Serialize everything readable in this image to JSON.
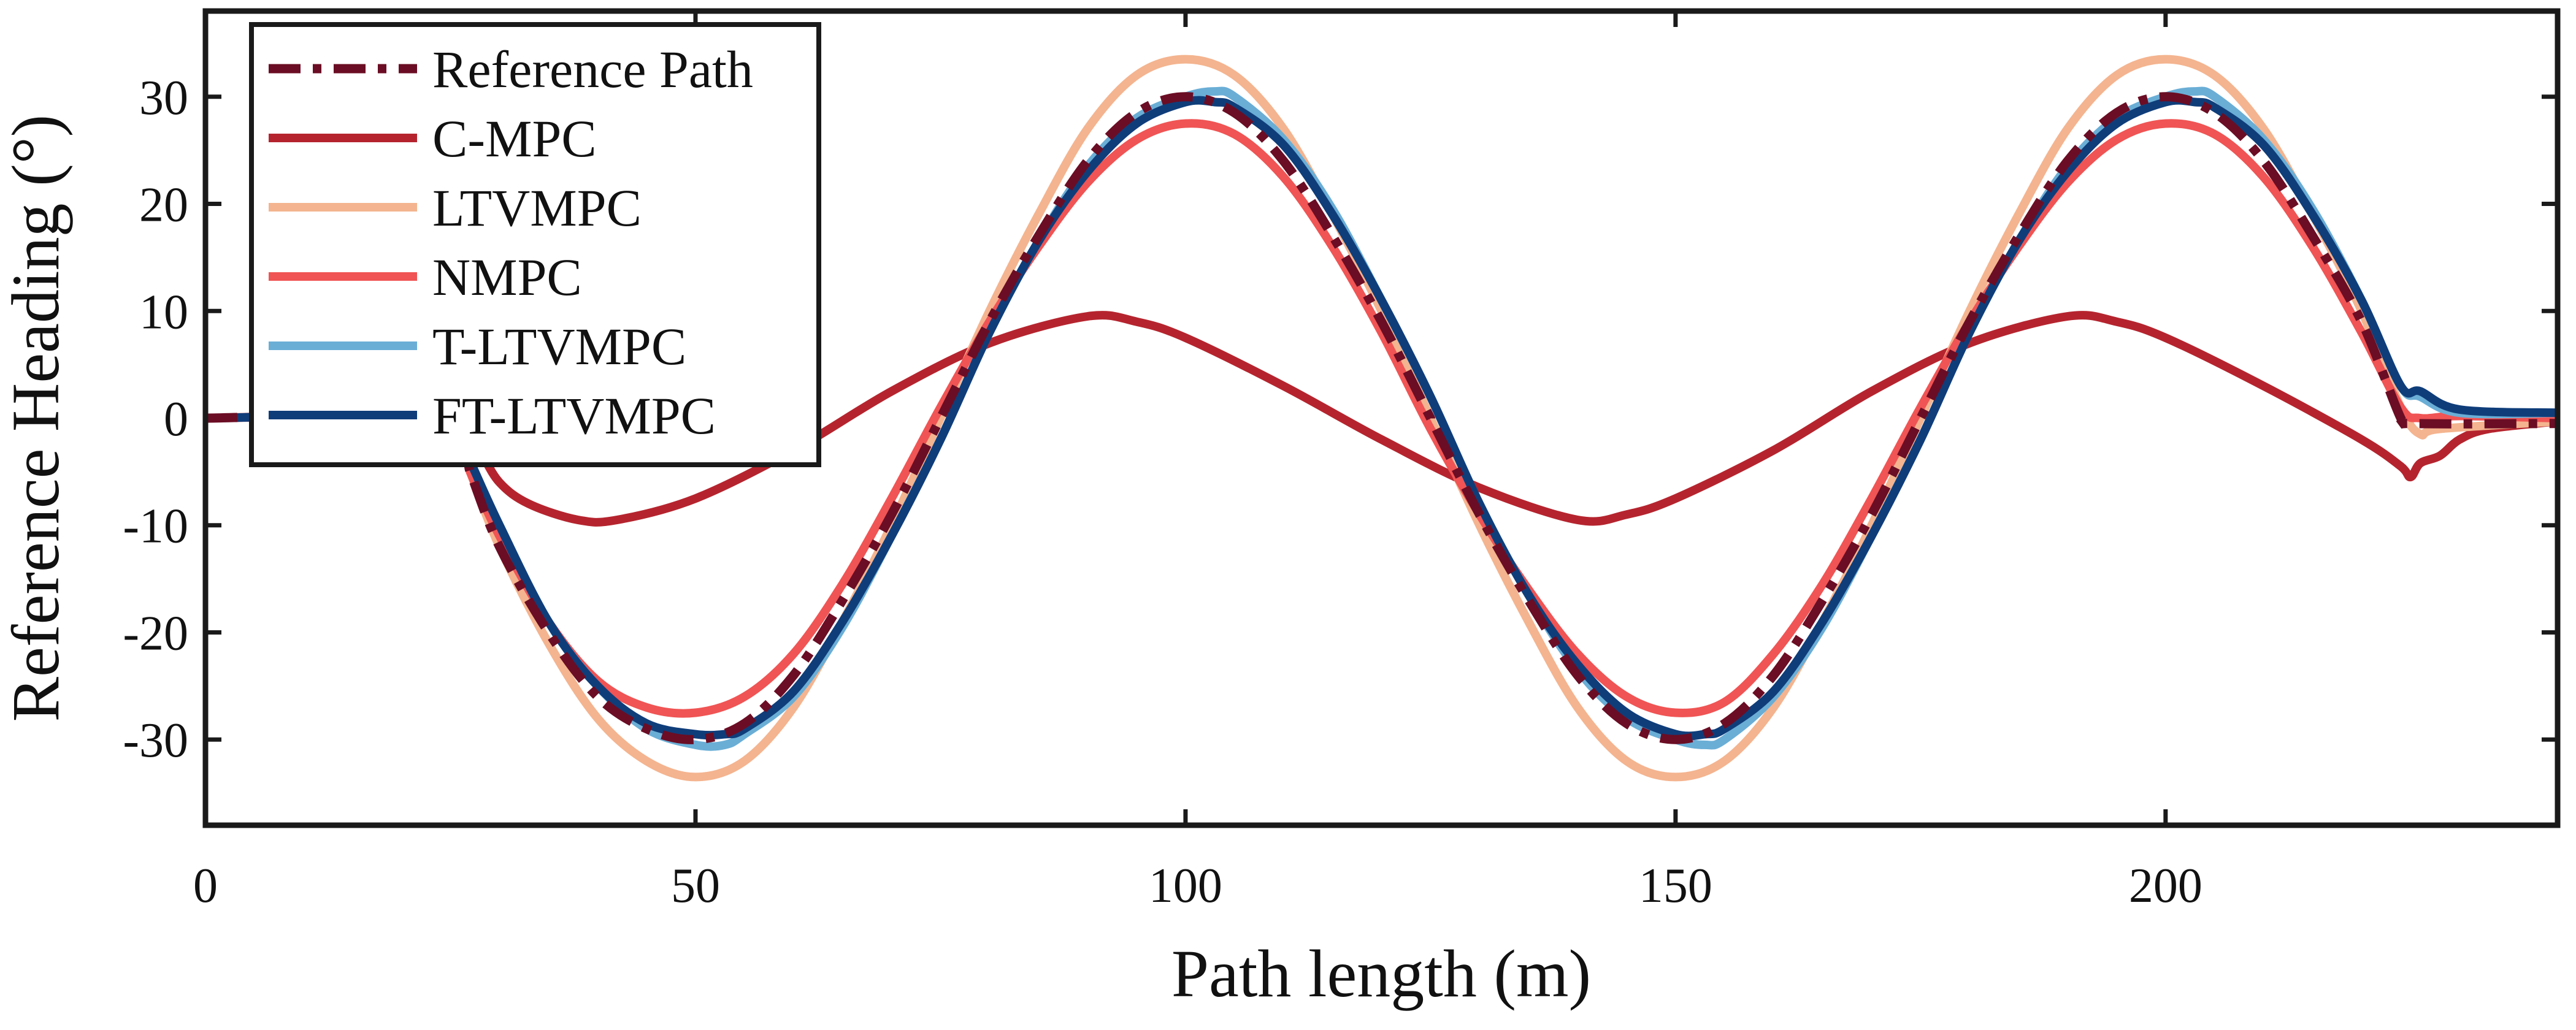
{
  "chart_data": {
    "type": "line",
    "title": "",
    "xlabel": "Path length (m)",
    "ylabel": "Reference Heading (°)",
    "xlim": [
      0,
      240
    ],
    "ylim": [
      -38,
      38
    ],
    "x_ticks": [
      0,
      50,
      100,
      150,
      200
    ],
    "y_ticks": [
      30,
      20,
      10,
      0,
      -10,
      -20,
      -30
    ],
    "legend_position": "top-left",
    "series": [
      {
        "name": "Reference Path",
        "color": "#6b0d24",
        "style": "dashdot",
        "points": [
          [
            0,
            0
          ],
          [
            25,
            0
          ],
          [
            27,
            -5
          ],
          [
            30,
            -12
          ],
          [
            35,
            -20
          ],
          [
            40,
            -26
          ],
          [
            45,
            -29
          ],
          [
            50,
            -30
          ],
          [
            55,
            -28.5
          ],
          [
            60,
            -24
          ],
          [
            65,
            -17
          ],
          [
            70,
            -9
          ],
          [
            75,
            0
          ],
          [
            80,
            9
          ],
          [
            85,
            17
          ],
          [
            90,
            24
          ],
          [
            95,
            28.5
          ],
          [
            100,
            30
          ],
          [
            105,
            28.5
          ],
          [
            110,
            24
          ],
          [
            115,
            17
          ],
          [
            120,
            9
          ],
          [
            125,
            0
          ],
          [
            130,
            -9
          ],
          [
            135,
            -17
          ],
          [
            140,
            -24
          ],
          [
            145,
            -28.5
          ],
          [
            150,
            -30
          ],
          [
            155,
            -28.5
          ],
          [
            160,
            -24
          ],
          [
            165,
            -17
          ],
          [
            170,
            -9
          ],
          [
            175,
            0
          ],
          [
            180,
            9
          ],
          [
            185,
            17
          ],
          [
            190,
            24
          ],
          [
            195,
            28.5
          ],
          [
            200,
            30
          ],
          [
            205,
            28.5
          ],
          [
            210,
            24
          ],
          [
            215,
            17
          ],
          [
            220,
            9
          ],
          [
            224,
            0
          ],
          [
            225,
            -0.5
          ],
          [
            240,
            -0.5
          ]
        ]
      },
      {
        "name": "C-MPC",
        "color": "#b5242e",
        "style": "solid",
        "points": [
          [
            0,
            0
          ],
          [
            26,
            0
          ],
          [
            28,
            -3
          ],
          [
            30,
            -6
          ],
          [
            33,
            -8
          ],
          [
            38,
            -9.5
          ],
          [
            42,
            -9.5
          ],
          [
            50,
            -7.5
          ],
          [
            60,
            -3
          ],
          [
            70,
            2.5
          ],
          [
            80,
            7
          ],
          [
            90,
            9.5
          ],
          [
            95,
            9
          ],
          [
            100,
            7.5
          ],
          [
            110,
            3
          ],
          [
            120,
            -2
          ],
          [
            130,
            -6.5
          ],
          [
            140,
            -9.5
          ],
          [
            145,
            -9
          ],
          [
            150,
            -7.5
          ],
          [
            160,
            -3
          ],
          [
            170,
            2.5
          ],
          [
            180,
            7
          ],
          [
            190,
            9.5
          ],
          [
            195,
            9
          ],
          [
            200,
            7.5
          ],
          [
            210,
            3
          ],
          [
            220,
            -2
          ],
          [
            224,
            -4.5
          ],
          [
            225,
            -5.5
          ],
          [
            226,
            -4.2
          ],
          [
            228,
            -3.5
          ],
          [
            230,
            -2
          ],
          [
            233,
            -1
          ],
          [
            240,
            -0.3
          ]
        ]
      },
      {
        "name": "LTVMPC",
        "color": "#f4b48f",
        "style": "solid",
        "points": [
          [
            0,
            0
          ],
          [
            25,
            0
          ],
          [
            27,
            -5
          ],
          [
            30,
            -12
          ],
          [
            35,
            -21
          ],
          [
            40,
            -28
          ],
          [
            45,
            -32
          ],
          [
            50,
            -33.5
          ],
          [
            55,
            -32
          ],
          [
            60,
            -27
          ],
          [
            65,
            -19
          ],
          [
            70,
            -10
          ],
          [
            75,
            0
          ],
          [
            80,
            10
          ],
          [
            85,
            19
          ],
          [
            90,
            27
          ],
          [
            95,
            32
          ],
          [
            100,
            33.5
          ],
          [
            105,
            32
          ],
          [
            110,
            27
          ],
          [
            115,
            19
          ],
          [
            120,
            10
          ],
          [
            125,
            0
          ],
          [
            130,
            -10
          ],
          [
            135,
            -19
          ],
          [
            140,
            -27
          ],
          [
            145,
            -32
          ],
          [
            150,
            -33.5
          ],
          [
            155,
            -32
          ],
          [
            160,
            -27
          ],
          [
            165,
            -19
          ],
          [
            170,
            -10
          ],
          [
            175,
            0
          ],
          [
            180,
            10
          ],
          [
            185,
            19
          ],
          [
            190,
            27
          ],
          [
            195,
            32
          ],
          [
            200,
            33.5
          ],
          [
            205,
            32
          ],
          [
            210,
            27
          ],
          [
            215,
            19
          ],
          [
            220,
            10
          ],
          [
            224,
            1
          ],
          [
            226,
            -1.5
          ],
          [
            228,
            -1
          ],
          [
            240,
            -0.3
          ]
        ]
      },
      {
        "name": "NMPC",
        "color": "#f05454",
        "style": "solid",
        "points": [
          [
            0,
            0
          ],
          [
            25,
            0
          ],
          [
            27,
            -5
          ],
          [
            30,
            -11
          ],
          [
            35,
            -19
          ],
          [
            40,
            -24.5
          ],
          [
            45,
            -27
          ],
          [
            50,
            -27.5
          ],
          [
            55,
            -26
          ],
          [
            60,
            -22
          ],
          [
            65,
            -15.5
          ],
          [
            70,
            -7.5
          ],
          [
            75,
            1
          ],
          [
            80,
            9
          ],
          [
            85,
            16
          ],
          [
            90,
            22
          ],
          [
            95,
            26
          ],
          [
            100,
            27.5
          ],
          [
            105,
            26.5
          ],
          [
            110,
            22.5
          ],
          [
            115,
            16
          ],
          [
            120,
            8
          ],
          [
            125,
            -1
          ],
          [
            130,
            -9
          ],
          [
            135,
            -16
          ],
          [
            140,
            -22
          ],
          [
            145,
            -26
          ],
          [
            150,
            -27.5
          ],
          [
            155,
            -26.5
          ],
          [
            160,
            -22
          ],
          [
            165,
            -15.5
          ],
          [
            170,
            -7.5
          ],
          [
            175,
            1
          ],
          [
            180,
            9
          ],
          [
            185,
            16
          ],
          [
            190,
            22
          ],
          [
            195,
            26
          ],
          [
            200,
            27.5
          ],
          [
            205,
            26.5
          ],
          [
            210,
            22.5
          ],
          [
            215,
            16
          ],
          [
            220,
            8
          ],
          [
            224,
            1
          ],
          [
            226,
            0
          ],
          [
            230,
            0.2
          ],
          [
            240,
            0
          ]
        ]
      },
      {
        "name": "T-LTVMPC",
        "color": "#6aaed6",
        "style": "solid",
        "points": [
          [
            0,
            0
          ],
          [
            25,
            0
          ],
          [
            27,
            -4
          ],
          [
            30,
            -10
          ],
          [
            35,
            -19
          ],
          [
            40,
            -25
          ],
          [
            45,
            -29
          ],
          [
            50,
            -30.5
          ],
          [
            53,
            -30.5
          ],
          [
            55,
            -29.5
          ],
          [
            60,
            -26
          ],
          [
            65,
            -19.5
          ],
          [
            70,
            -11
          ],
          [
            75,
            -2
          ],
          [
            80,
            8
          ],
          [
            85,
            16.5
          ],
          [
            90,
            23.5
          ],
          [
            95,
            28
          ],
          [
            100,
            30
          ],
          [
            103,
            30.5
          ],
          [
            105,
            30
          ],
          [
            110,
            26
          ],
          [
            115,
            19.5
          ],
          [
            120,
            11
          ],
          [
            125,
            2
          ],
          [
            130,
            -8
          ],
          [
            135,
            -16.5
          ],
          [
            140,
            -23.5
          ],
          [
            145,
            -28
          ],
          [
            150,
            -30
          ],
          [
            153,
            -30.5
          ],
          [
            155,
            -30
          ],
          [
            160,
            -26
          ],
          [
            165,
            -19.5
          ],
          [
            170,
            -11
          ],
          [
            175,
            -2
          ],
          [
            180,
            8
          ],
          [
            185,
            16.5
          ],
          [
            190,
            23.5
          ],
          [
            195,
            28
          ],
          [
            200,
            30
          ],
          [
            203,
            30.5
          ],
          [
            205,
            30
          ],
          [
            210,
            26
          ],
          [
            215,
            19.5
          ],
          [
            220,
            11
          ],
          [
            224,
            3
          ],
          [
            226,
            2
          ],
          [
            230,
            0.5
          ],
          [
            240,
            0.5
          ]
        ]
      },
      {
        "name": "FT-LTVMPC",
        "color": "#0f3d7a",
        "style": "solid",
        "points": [
          [
            0,
            0
          ],
          [
            25,
            0
          ],
          [
            27,
            -4
          ],
          [
            30,
            -10
          ],
          [
            35,
            -19
          ],
          [
            40,
            -25
          ],
          [
            45,
            -28.5
          ],
          [
            50,
            -29.5
          ],
          [
            53,
            -29.5
          ],
          [
            55,
            -29
          ],
          [
            60,
            -25.5
          ],
          [
            65,
            -19
          ],
          [
            70,
            -11
          ],
          [
            75,
            -2
          ],
          [
            80,
            8
          ],
          [
            85,
            16.5
          ],
          [
            90,
            23
          ],
          [
            95,
            27.5
          ],
          [
            100,
            29.5
          ],
          [
            103,
            29.5
          ],
          [
            105,
            29
          ],
          [
            110,
            25.5
          ],
          [
            115,
            19
          ],
          [
            120,
            11
          ],
          [
            125,
            2
          ],
          [
            130,
            -8
          ],
          [
            135,
            -16.5
          ],
          [
            140,
            -23
          ],
          [
            145,
            -27.5
          ],
          [
            150,
            -29.5
          ],
          [
            153,
            -29.5
          ],
          [
            155,
            -29
          ],
          [
            160,
            -25.5
          ],
          [
            165,
            -19
          ],
          [
            170,
            -11
          ],
          [
            175,
            -2
          ],
          [
            180,
            8
          ],
          [
            185,
            16.5
          ],
          [
            190,
            23
          ],
          [
            195,
            27.5
          ],
          [
            200,
            29.5
          ],
          [
            203,
            29.5
          ],
          [
            205,
            29
          ],
          [
            210,
            25.5
          ],
          [
            215,
            19
          ],
          [
            220,
            11
          ],
          [
            224,
            3
          ],
          [
            226,
            2.5
          ],
          [
            230,
            0.8
          ],
          [
            240,
            0.5
          ]
        ]
      }
    ]
  }
}
